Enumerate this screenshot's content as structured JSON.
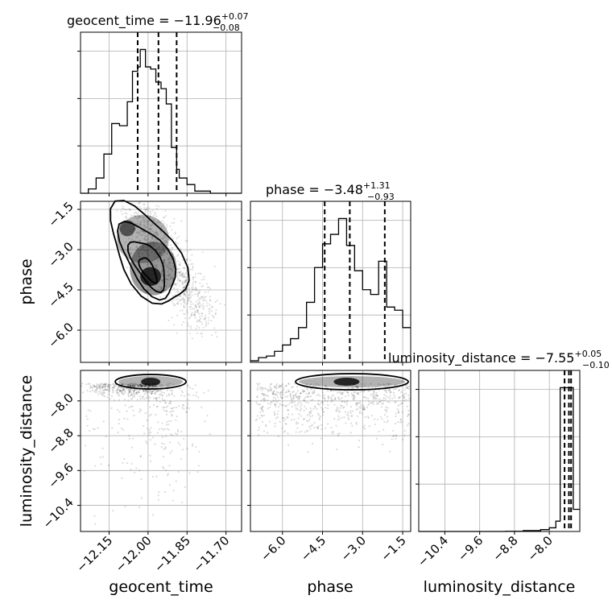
{
  "chart_data": {
    "type": "corner",
    "parameters": [
      {
        "name": "geocent_time",
        "axis_label": "geocent_time",
        "title_prefix": "geocent_time = ",
        "median": "−11.96",
        "upper_err": "+0.07",
        "lower_err": "−0.08",
        "range": [
          -12.26,
          -11.64
        ],
        "ticks": [
          {
            "value": -12.15,
            "label": "−12.15"
          },
          {
            "value": -12.0,
            "label": "−12.00"
          },
          {
            "value": -11.85,
            "label": "−11.85"
          },
          {
            "value": -11.7,
            "label": "−11.70"
          }
        ],
        "quantiles": [
          -12.04,
          -11.96,
          -11.89
        ],
        "hist_edges": [
          -12.26,
          -12.23,
          -12.2,
          -12.17,
          -12.14,
          -12.11,
          -12.08,
          -12.06,
          -12.04,
          -12.03,
          -12.01,
          -11.99,
          -11.97,
          -11.95,
          -11.93,
          -11.91,
          -11.89,
          -11.88,
          -11.85,
          -11.82,
          -11.79,
          -11.76,
          -11.73,
          -11.7,
          -11.64
        ],
        "hist_counts": [
          0,
          2,
          7,
          18,
          32,
          31,
          42,
          56,
          58,
          66,
          58,
          57,
          51,
          48,
          41,
          21,
          11,
          7,
          4,
          1,
          1,
          0,
          0,
          0
        ]
      },
      {
        "name": "phase",
        "axis_label": "phase",
        "title_prefix": "phase = ",
        "median": "−3.48",
        "upper_err": "+1.31",
        "lower_err": "−0.93",
        "range": [
          -7.2,
          -1.2
        ],
        "ticks": [
          {
            "value": -6.0,
            "label": "−6.0"
          },
          {
            "value": -4.5,
            "label": "−4.5"
          },
          {
            "value": -3.0,
            "label": "−3.0"
          },
          {
            "value": -1.5,
            "label": "−1.5"
          }
        ],
        "quantiles": [
          -4.42,
          -3.48,
          -2.17
        ],
        "hist_edges": [
          -7.2,
          -6.9,
          -6.6,
          -6.3,
          -6.0,
          -5.7,
          -5.4,
          -5.1,
          -4.8,
          -4.5,
          -4.2,
          -3.9,
          -3.6,
          -3.3,
          -3.0,
          -2.7,
          -2.4,
          -2.1,
          -1.8,
          -1.5,
          -1.2
        ],
        "hist_counts": [
          1,
          3,
          4,
          7,
          11,
          15,
          22,
          38,
          60,
          75,
          81,
          91,
          74,
          58,
          46,
          43,
          64,
          35,
          33,
          22
        ]
      },
      {
        "name": "luminosity_distance",
        "axis_label": "luminosity_distance",
        "title_prefix": "luminosity_distance = ",
        "median": "−7.55",
        "upper_err": "+0.05",
        "lower_err": "−0.10",
        "range": [
          -11.0,
          -7.3
        ],
        "ticks": [
          {
            "value": -10.4,
            "label": "−10.4"
          },
          {
            "value": -9.6,
            "label": "−9.6"
          },
          {
            "value": -8.8,
            "label": "−8.8"
          },
          {
            "value": -8.0,
            "label": "−8.0"
          }
        ],
        "quantiles": [
          -7.65,
          -7.55,
          -7.5
        ],
        "hist_edges": [
          -11.0,
          -10.6,
          -10.2,
          -9.8,
          -9.4,
          -9.0,
          -8.6,
          -8.2,
          -8.0,
          -7.85,
          -7.75,
          -7.65,
          -7.45,
          -7.3
        ],
        "hist_counts": [
          0,
          0,
          0,
          0,
          0,
          0.3,
          1.2,
          2.5,
          5,
          14,
          195,
          195,
          30
        ]
      }
    ],
    "scatter_density": [
      {
        "x_param": "geocent_time",
        "y_param": "phase",
        "mode_x": -11.99,
        "mode_y": -4.0
      },
      {
        "x_param": "geocent_time",
        "y_param": "luminosity_distance",
        "mode_x": -11.99,
        "mode_y": -7.55
      },
      {
        "x_param": "phase",
        "y_param": "luminosity_distance",
        "mode_x": -3.6,
        "mode_y": -7.55
      }
    ]
  }
}
